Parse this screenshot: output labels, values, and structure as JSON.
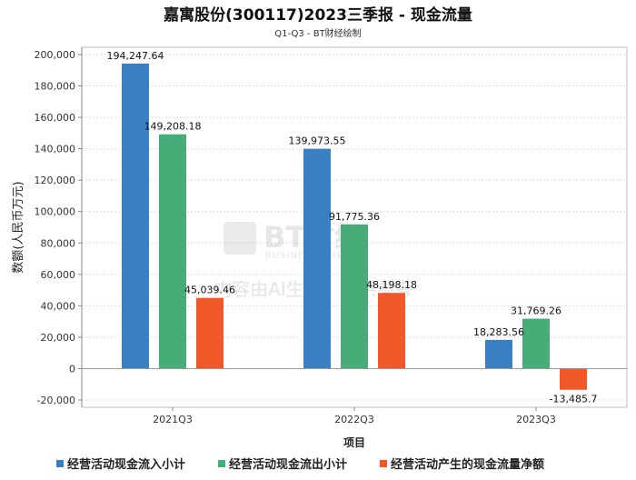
{
  "chart_data": {
    "type": "bar",
    "title": "嘉寓股份(300117)2023三季报 - 现金流量",
    "subtitle": "Q1-Q3 - BT财经绘制",
    "xlabel": "项目",
    "ylabel": "数额(人民币万元)",
    "categories": [
      "2021Q3",
      "2022Q3",
      "2023Q3"
    ],
    "ylim": [
      -20000,
      200000
    ],
    "yticks": [
      -20000,
      0,
      20000,
      40000,
      60000,
      80000,
      100000,
      120000,
      140000,
      160000,
      180000,
      200000
    ],
    "ytick_labels": [
      "-20,000",
      "0",
      "20,000",
      "40,000",
      "60,000",
      "80,000",
      "100,000",
      "120,000",
      "140,000",
      "160,000",
      "180,000",
      "200,000"
    ],
    "grid": true,
    "legend_position": "bottom",
    "series": [
      {
        "name": "经营活动现金流入小计",
        "color": "#3a7fc1",
        "values": [
          194247.64,
          139973.55,
          18283.56
        ],
        "labels": [
          "194,247.64",
          "139,973.55",
          "18,283.56"
        ]
      },
      {
        "name": "经营活动现金流出小计",
        "color": "#47ad78",
        "values": [
          149208.18,
          91775.36,
          31769.26
        ],
        "labels": [
          "149,208.18",
          "91,775.36",
          "31,769.26"
        ]
      },
      {
        "name": "经营活动产生的现金流量净额",
        "color": "#f0582a",
        "values": [
          45039.46,
          48198.18,
          -13485.7
        ],
        "labels": [
          "45,039.46",
          "48,198.18",
          "-13,485.7"
        ]
      }
    ]
  },
  "watermark": {
    "logo": "BT财经",
    "logo_sub": "BUSINESSTIMES",
    "notice": "内容由AI生成，仅供参考"
  }
}
